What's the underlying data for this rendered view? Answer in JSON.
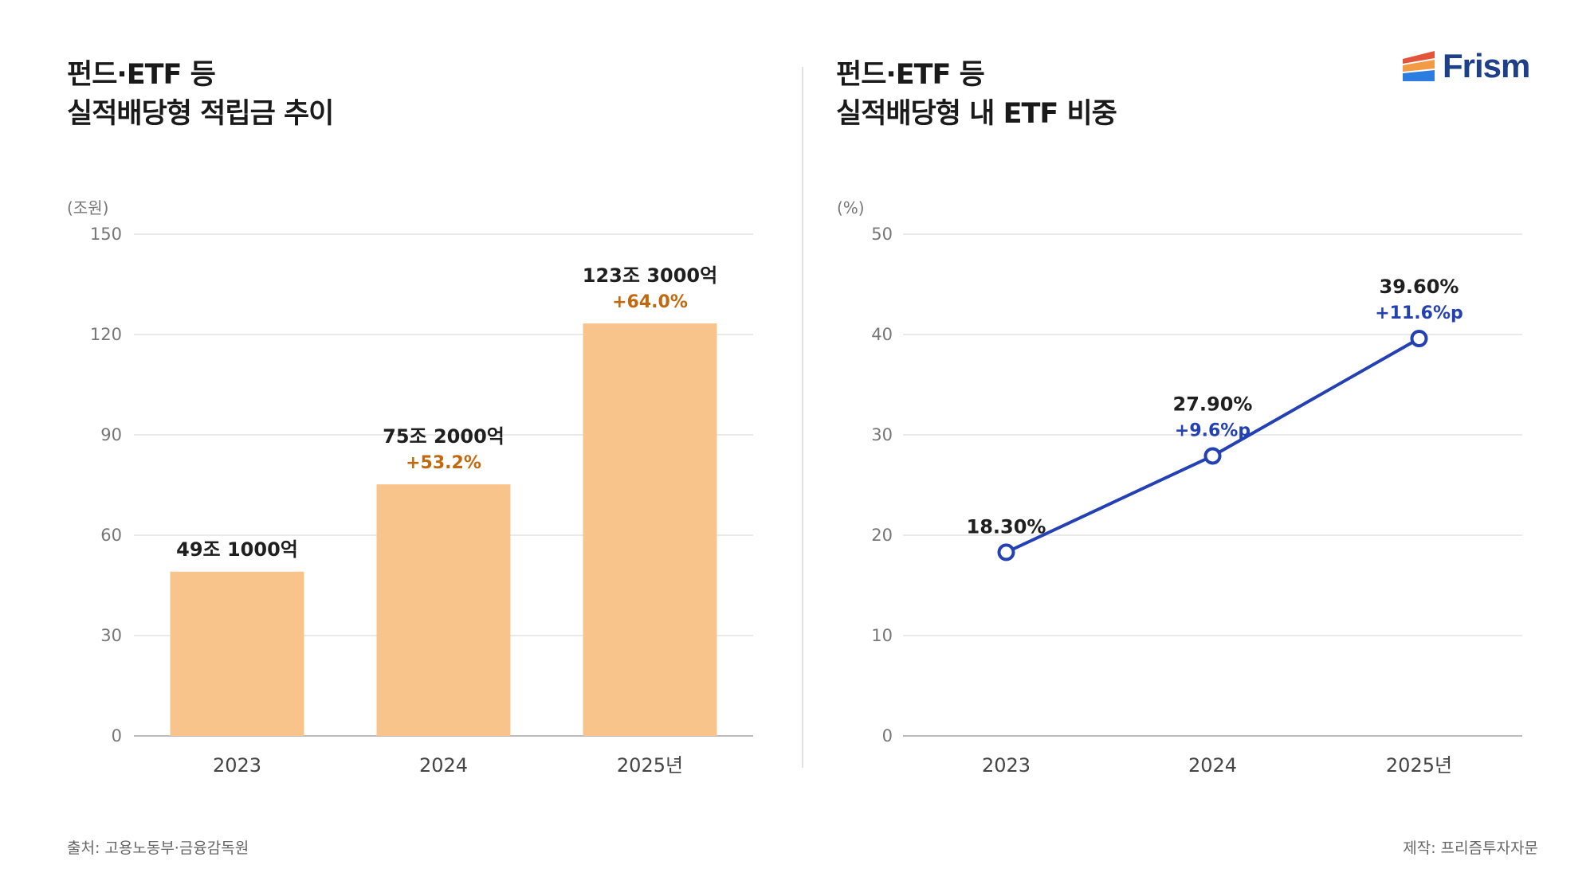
{
  "logo": {
    "text": "Frism"
  },
  "footer": {
    "source": "출처: 고용노동부·금융감독원",
    "credit": "제작: 프리즘투자자문"
  },
  "colors": {
    "bar": "#f8c48c",
    "growth_orange": "#c2690f",
    "line_blue": "#2340b4",
    "grid": "#e3e3e3",
    "axis": "#bbbbbb",
    "tick_text": "#777777",
    "logo_red": "#e4543b",
    "logo_orange": "#f39a44",
    "logo_blue": "#2d7de0"
  },
  "chart_data": [
    {
      "type": "bar",
      "title_lines": [
        "펀드·ETF 등",
        "실적배당형 적립금 추이"
      ],
      "unit": "(조원)",
      "categories": [
        "2023",
        "2024",
        "2025년"
      ],
      "values": [
        49.1,
        75.2,
        123.3
      ],
      "value_labels": [
        "49조 1000억",
        "75조 2000억",
        "123조 3000억"
      ],
      "growth_labels": [
        "",
        "+53.2%",
        "+64.0%"
      ],
      "ylim": [
        0,
        150
      ],
      "yticks": [
        "0",
        "30",
        "60",
        "90",
        "120",
        "150"
      ],
      "grid": true
    },
    {
      "type": "line",
      "title_lines": [
        "펀드·ETF 등",
        "실적배당형 내 ETF 비중"
      ],
      "unit": "(%)",
      "categories": [
        "2023",
        "2024",
        "2025년"
      ],
      "values": [
        18.3,
        27.9,
        39.6
      ],
      "value_labels": [
        "18.30%",
        "27.90%",
        "39.60%"
      ],
      "growth_labels": [
        "",
        "+9.6%p",
        "+11.6%p"
      ],
      "ylim": [
        0,
        50
      ],
      "yticks": [
        "0",
        "10",
        "20",
        "30",
        "40",
        "50"
      ],
      "grid": true
    }
  ]
}
